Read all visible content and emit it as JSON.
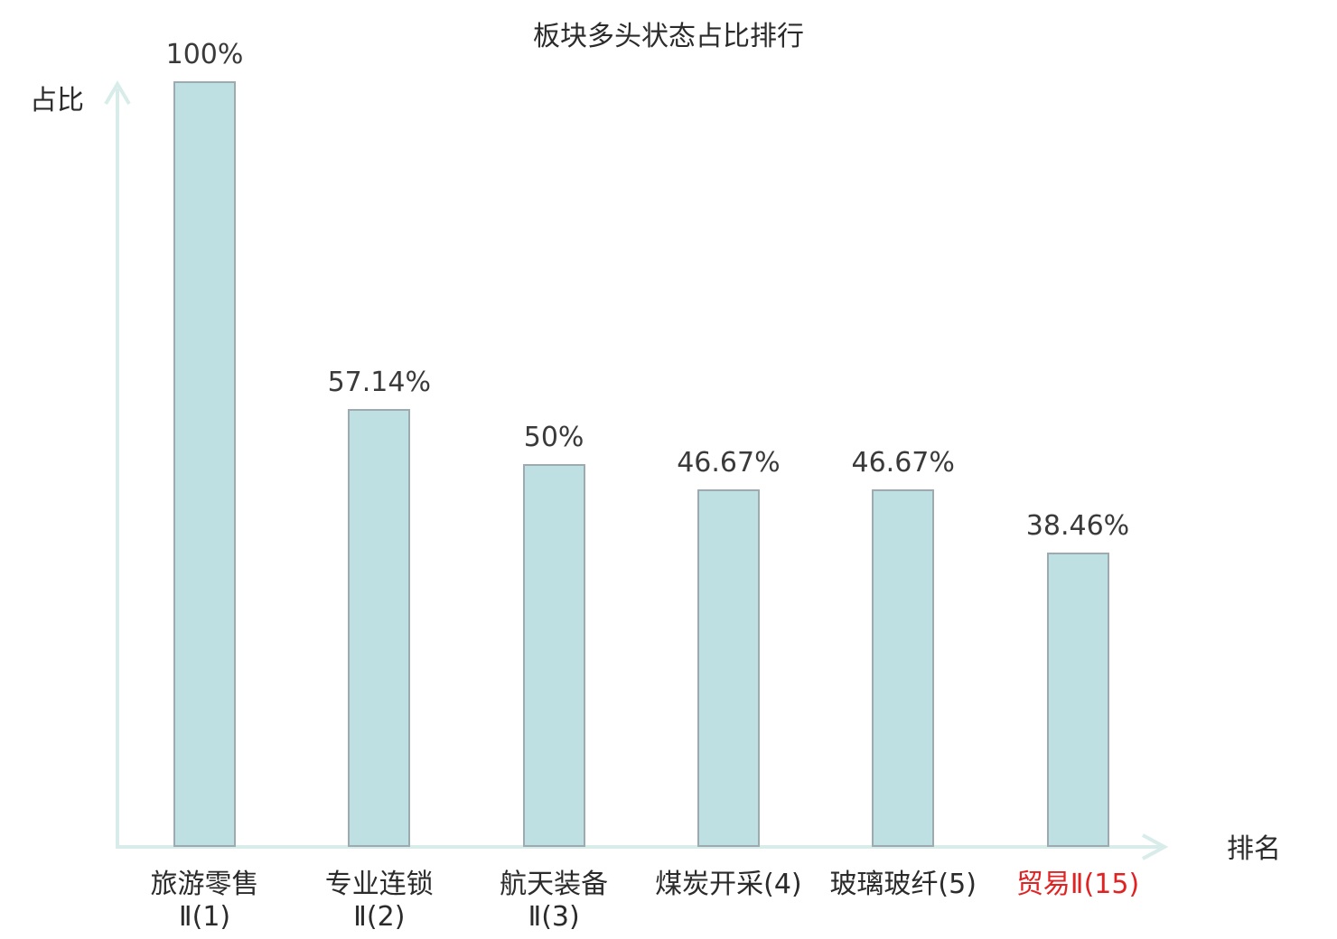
{
  "chart_data": {
    "type": "bar",
    "title": "板块多头状态占比排行",
    "xlabel": "排名",
    "ylabel": "占比",
    "ylim": [
      0,
      100
    ],
    "grid": false,
    "legend": false,
    "categories": [
      "旅游零售Ⅱ(1)",
      "专业连锁Ⅱ(2)",
      "航天装备Ⅱ(3)",
      "煤炭开采(4)",
      "玻璃玻纤(5)",
      "贸易Ⅱ(15)"
    ],
    "category_lines": [
      [
        "旅游零售",
        "Ⅱ(1)"
      ],
      [
        "专业连锁",
        "Ⅱ(2)"
      ],
      [
        "航天装备",
        "Ⅱ(3)"
      ],
      [
        "煤炭开采(4)"
      ],
      [
        "玻璃玻纤(5)"
      ],
      [
        "贸易Ⅱ(15)"
      ]
    ],
    "values": [
      100,
      57.14,
      50,
      46.67,
      46.67,
      38.46
    ],
    "value_labels": [
      "100%",
      "57.14%",
      "50%",
      "46.67%",
      "46.67%",
      "38.46%"
    ],
    "highlighted_category_index": 5,
    "colors": {
      "bar_fill": "#bfe0e3",
      "bar_border": "#9daab0",
      "axis": "#d8ecea",
      "text": "#3a3a3a",
      "highlight": "#e02222",
      "title_text": "#2b2b2b"
    }
  }
}
